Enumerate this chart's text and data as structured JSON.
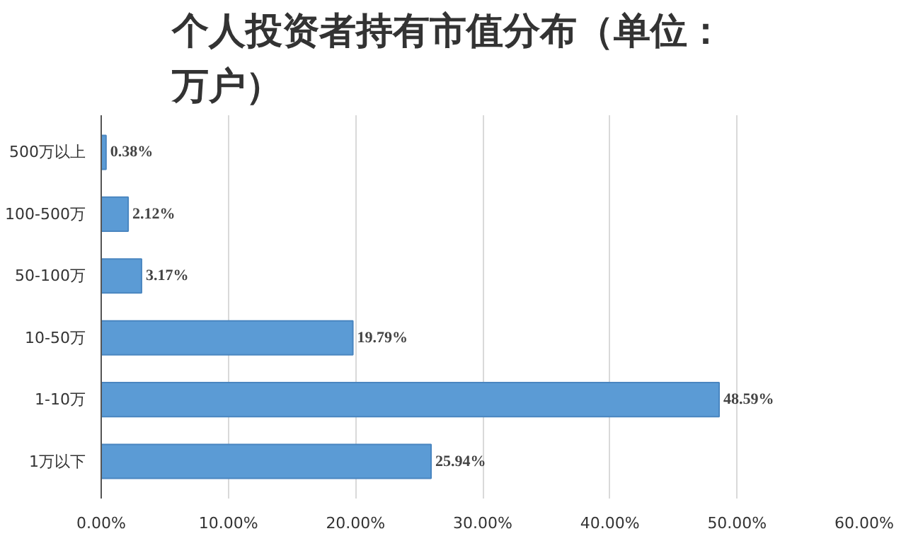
{
  "chart_data": {
    "type": "bar",
    "orientation": "horizontal",
    "title": "个人投资者持有市值分布（单位：万户）",
    "categories": [
      "500万以上",
      "100-500万",
      "50-100万",
      "10-50万",
      "1-10万",
      "1万以下"
    ],
    "values": [
      0.38,
      2.12,
      3.17,
      19.79,
      48.59,
      25.94
    ],
    "value_labels": [
      "0.38%",
      "2.12%",
      "3.17%",
      "19.79%",
      "48.59%",
      "25.94%"
    ],
    "color": "#5b9bd5",
    "xlim": [
      0,
      60
    ],
    "xticks": [
      {
        "value": 0,
        "label": "0.00%"
      },
      {
        "value": 10,
        "label": "10.00%"
      },
      {
        "value": 20,
        "label": "20.00%"
      },
      {
        "value": 30,
        "label": "30.00%"
      },
      {
        "value": 40,
        "label": "40.00%"
      },
      {
        "value": 50,
        "label": "50.00%"
      },
      {
        "value": 60,
        "label": "60.00%"
      }
    ],
    "grid": "x"
  }
}
